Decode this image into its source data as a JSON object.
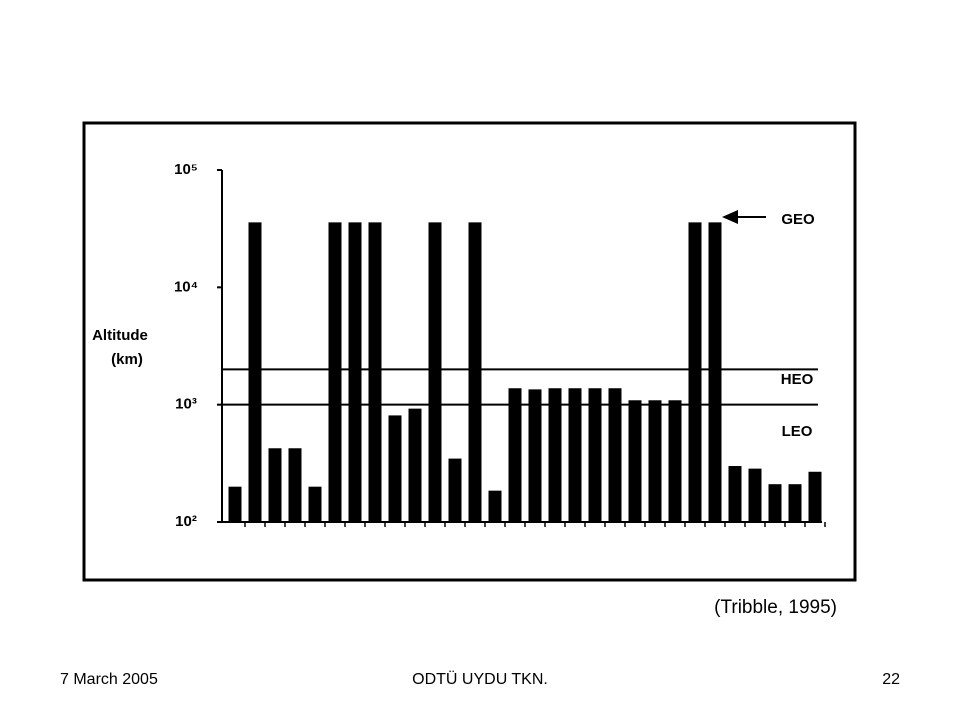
{
  "chart_data": {
    "type": "bar",
    "log_scale": true,
    "color": "#000000",
    "ylabel": [
      "Altitude",
      "(km)"
    ],
    "values": [
      200,
      35786,
      425,
      425,
      200,
      35786,
      35786,
      35786,
      810,
      925,
      35786,
      347,
      35786,
      185,
      1380,
      1350,
      1380,
      1380,
      1380,
      1380,
      1090,
      1090,
      1090,
      35786,
      35786,
      300,
      285,
      210,
      210,
      268
    ],
    "ylim": [
      100,
      100000
    ],
    "yticks": [
      {
        "value": 100,
        "label": "10²"
      },
      {
        "value": 1000,
        "label": "10³"
      },
      {
        "value": 10000,
        "label": "10⁴"
      },
      {
        "value": 100000,
        "label": "10⁵"
      }
    ],
    "reference_lines": [
      {
        "value": 2000
      },
      {
        "value": 1000
      }
    ],
    "annotations": [
      "GEO",
      "HEO",
      "LEO"
    ]
  },
  "caption": "(Tribble, 1995)",
  "footer": {
    "date": "7 March 2005",
    "center": "ODTÜ UYDU TKN.",
    "page": "22"
  }
}
